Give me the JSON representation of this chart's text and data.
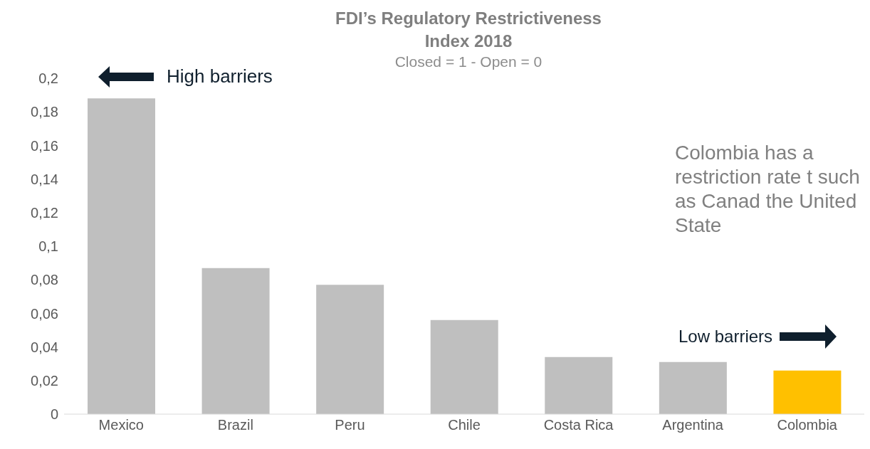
{
  "chart_data": {
    "type": "bar",
    "title": "FDI’s Regulatory Restrictiveness Index 2018",
    "subtitle": "Closed = 1 - Open = 0",
    "categories": [
      "Mexico",
      "Brazil",
      "Peru",
      "Chile",
      "Costa Rica",
      "Argentina",
      "Colombia"
    ],
    "values": [
      0.188,
      0.087,
      0.077,
      0.056,
      0.034,
      0.031,
      0.026
    ],
    "colors": [
      "#bfbfbf",
      "#bfbfbf",
      "#bfbfbf",
      "#bfbfbf",
      "#bfbfbf",
      "#bfbfbf",
      "#ffc000"
    ],
    "ylim": [
      0,
      0.2
    ],
    "yticks": [
      0,
      {
        "value": 0.02,
        "label": "0,02"
      },
      {
        "value": 0.04,
        "label": "0,04"
      },
      {
        "value": 0.06,
        "label": "0,06"
      },
      {
        "value": 0.08,
        "label": "0,08"
      },
      {
        "value": 0.1,
        "label": "0,1"
      },
      {
        "value": 0.12,
        "label": "0,12"
      },
      {
        "value": 0.14,
        "label": "0,14"
      },
      {
        "value": 0.16,
        "label": "0,16"
      },
      {
        "value": 0.18,
        "label": "0,18"
      },
      {
        "value": 0.2,
        "label": "0,2"
      }
    ],
    "grid": false,
    "legend": false,
    "annotations": [
      "High barriers",
      "Low barriers",
      "Colombia has a restriction rate t such as Canad the United State"
    ]
  }
}
